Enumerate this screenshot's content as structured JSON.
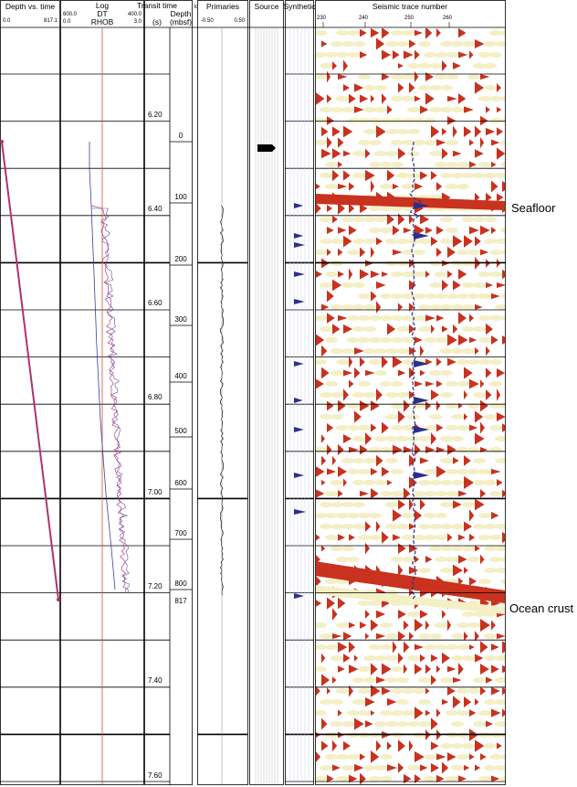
{
  "panels": {
    "depth_vs_time": {
      "title": "Depth vs. time",
      "min_label": "0.0",
      "max_label": "817.1"
    },
    "log": {
      "title": "Log",
      "curve1": "DT",
      "curve2": "RHOB",
      "dt_min": "600.0",
      "dt_max": "400.0",
      "rhob_min": "0.0",
      "rhob_max": "3.0"
    },
    "transit": {
      "title": "Transit time",
      "unit": "(s)",
      "ticks": [
        "6.20",
        "6.40",
        "6.60",
        "6.80",
        "7.00",
        "7.20",
        "7.40",
        "7.60"
      ]
    },
    "depth": {
      "title": "Depth",
      "unit": "(mbsf)",
      "corner": "k",
      "ticks": [
        "0",
        "100",
        "200",
        "300",
        "400",
        "500",
        "600",
        "700",
        "800",
        "817"
      ]
    },
    "primaries": {
      "title": "Primaries",
      "min_label": "-0.50",
      "max_label": "0.50"
    },
    "source": {
      "title": "Source"
    },
    "synthetic": {
      "title": "Synthetic"
    },
    "seismic": {
      "title": "Seismic trace number",
      "ticks": [
        "230",
        "240",
        "250",
        "260"
      ]
    }
  },
  "annotations": [
    "Seafloor",
    "Ocean crust"
  ]
}
